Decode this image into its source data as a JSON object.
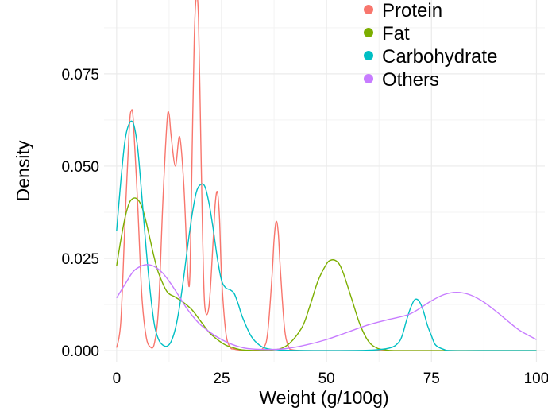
{
  "chart_data": {
    "type": "line",
    "xlabel": "Weight (g/100g)",
    "ylabel": "Density",
    "xlim": [
      -3,
      102
    ],
    "ylim": [
      -0.003,
      0.095
    ],
    "x_ticks": [
      0,
      25,
      50,
      75,
      100
    ],
    "x_tick_labels": [
      "0",
      "25",
      "50",
      "75",
      "100"
    ],
    "y_ticks": [
      0.0,
      0.025,
      0.05,
      0.075
    ],
    "y_tick_labels": [
      "0.000",
      "0.025",
      "0.050",
      "0.075"
    ],
    "grid": true,
    "legend_position": "top-right",
    "series": [
      {
        "name": "Protein",
        "color": "#F8766D",
        "x": [
          0,
          1,
          2,
          3,
          3.5,
          4,
          5,
          6,
          7,
          8,
          9,
          10,
          11,
          12,
          12.5,
          13,
          14,
          15,
          16,
          17,
          17.5,
          18,
          18.5,
          19,
          19.5,
          20,
          20.5,
          21,
          22,
          23,
          23.5,
          24,
          24.5,
          25,
          26,
          27,
          28,
          30,
          33,
          35,
          36,
          37,
          37.5,
          38,
          38.5,
          39,
          40,
          41,
          42,
          45,
          50,
          60,
          70,
          80,
          90,
          100
        ],
        "y": [
          0.0008,
          0.008,
          0.035,
          0.06,
          0.065,
          0.062,
          0.04,
          0.015,
          0.004,
          0.001,
          0.002,
          0.012,
          0.04,
          0.062,
          0.064,
          0.058,
          0.05,
          0.058,
          0.045,
          0.02,
          0.022,
          0.055,
          0.085,
          0.096,
          0.09,
          0.06,
          0.03,
          0.012,
          0.012,
          0.03,
          0.04,
          0.043,
          0.036,
          0.02,
          0.005,
          0.001,
          0.0004,
          0.0001,
          0.0001,
          0.0008,
          0.005,
          0.02,
          0.03,
          0.035,
          0.032,
          0.022,
          0.006,
          0.001,
          0.0002,
          0.0,
          0.0,
          0.0,
          0.0,
          0.0,
          0.0,
          0.0
        ]
      },
      {
        "name": "Fat",
        "color": "#7CAE00",
        "x": [
          0,
          1,
          2,
          3,
          4,
          5,
          6,
          7,
          8,
          9,
          10,
          12,
          14,
          16,
          18,
          20,
          22,
          24,
          26,
          28,
          30,
          35,
          40,
          44,
          46,
          48,
          50,
          51,
          52,
          53,
          54,
          56,
          58,
          60,
          62,
          64,
          66,
          70,
          80,
          90,
          100
        ],
        "y": [
          0.023,
          0.03,
          0.036,
          0.04,
          0.0413,
          0.041,
          0.039,
          0.035,
          0.03,
          0.025,
          0.021,
          0.016,
          0.0145,
          0.013,
          0.011,
          0.008,
          0.005,
          0.003,
          0.0015,
          0.0007,
          0.0002,
          0.0001,
          0.001,
          0.006,
          0.012,
          0.019,
          0.0235,
          0.0245,
          0.0245,
          0.0235,
          0.021,
          0.014,
          0.007,
          0.0025,
          0.0007,
          0.0002,
          0.0,
          0.0,
          0.0,
          0.0,
          0.0
        ]
      },
      {
        "name": "Carbohydrate",
        "color": "#00BFC4",
        "x": [
          0,
          1,
          2,
          3,
          4,
          5,
          6,
          7,
          8,
          9,
          10,
          11,
          12,
          13,
          14,
          15,
          16,
          17,
          18,
          19,
          20,
          21,
          22,
          23,
          24,
          25,
          26,
          27,
          28,
          29,
          30,
          32,
          34,
          36,
          40,
          50,
          60,
          65,
          67,
          68,
          69,
          70,
          71,
          72,
          73,
          74,
          75,
          76,
          78,
          80,
          90,
          100
        ],
        "y": [
          0.0325,
          0.046,
          0.057,
          0.0615,
          0.0615,
          0.055,
          0.042,
          0.028,
          0.016,
          0.007,
          0.003,
          0.0015,
          0.0012,
          0.0025,
          0.006,
          0.012,
          0.02,
          0.029,
          0.037,
          0.043,
          0.045,
          0.0445,
          0.04,
          0.033,
          0.025,
          0.019,
          0.017,
          0.0165,
          0.0155,
          0.0125,
          0.009,
          0.004,
          0.0015,
          0.0005,
          0.0001,
          0.0,
          0.0001,
          0.0007,
          0.002,
          0.004,
          0.008,
          0.0115,
          0.0138,
          0.0135,
          0.011,
          0.007,
          0.004,
          0.0015,
          0.0003,
          0.0,
          0.0,
          0.0
        ]
      },
      {
        "name": "Others",
        "color": "#C77CFF",
        "x": [
          0,
          2,
          4,
          6,
          7.5,
          9,
          11,
          13,
          15,
          17,
          20,
          25,
          30,
          35,
          40,
          45,
          50,
          55,
          60,
          65,
          70,
          75,
          78,
          81,
          84,
          87,
          90,
          93,
          96,
          100
        ],
        "y": [
          0.0143,
          0.018,
          0.0215,
          0.023,
          0.0233,
          0.0228,
          0.021,
          0.018,
          0.0145,
          0.011,
          0.007,
          0.003,
          0.0008,
          0.0003,
          0.0005,
          0.0015,
          0.003,
          0.005,
          0.007,
          0.0085,
          0.01,
          0.0135,
          0.0152,
          0.0158,
          0.0152,
          0.0135,
          0.011,
          0.0082,
          0.0055,
          0.003
        ]
      }
    ]
  }
}
